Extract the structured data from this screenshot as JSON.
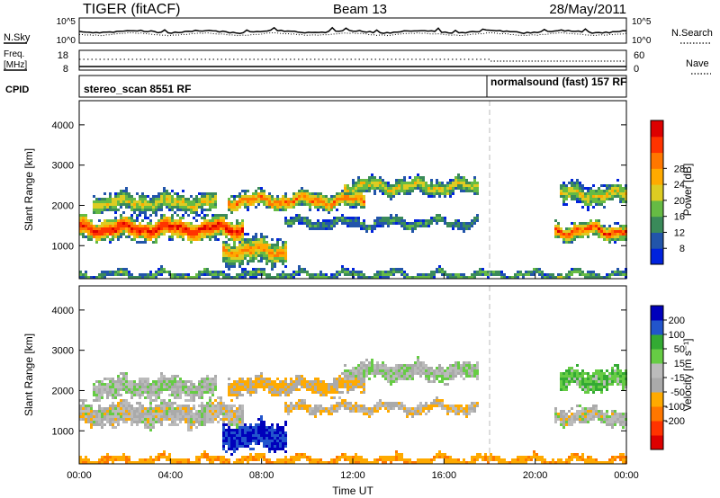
{
  "header": {
    "radar": "TIGER (fitACF)",
    "beam": "Beam 13",
    "date": "28/May/2011"
  },
  "noise_panel": {
    "left_label": "N.Sky",
    "right_label": "N.Search",
    "left_top_tick": "10^5",
    "left_bottom_tick": "10^0",
    "right_top_tick": "10^5",
    "right_bottom_tick": "10^0"
  },
  "freq_panel": {
    "left_label_1": "Freq.",
    "left_label_2": "[MHz]",
    "right_label": "Nave",
    "left_ticks": [
      "18",
      "8"
    ],
    "right_ticks": [
      "60",
      "0"
    ]
  },
  "cpid_panel": {
    "label": "CPID",
    "mode_1": "stereo_scan 8551 RF",
    "mode_2": "normalsound (fast) 157 RF"
  },
  "colors": {
    "power_scale": [
      "#0022dd",
      "#2255aa",
      "#3a8a5a",
      "#66bb44",
      "#ddcc22",
      "#ffaa00",
      "#ff7700",
      "#ff3300",
      "#dd0000"
    ],
    "velocity_scale": [
      "#0000bb",
      "#2255cc",
      "#33aa33",
      "#66cc44",
      "#bbbbbb",
      "#aaaaaa",
      "#ffaa00",
      "#ff7700",
      "#ff3300",
      "#dd0000"
    ]
  },
  "chart_data": [
    {
      "type": "heatmap",
      "name": "Power",
      "ylabel": "Slant Range [km]",
      "xlabel": "",
      "x_ticks": [
        "00:00",
        "04:00",
        "08:00",
        "12:00",
        "16:00",
        "20:00",
        "00:00"
      ],
      "y_ticks": [
        "1000",
        "2000",
        "3000",
        "4000"
      ],
      "xlim_hours": [
        0,
        24
      ],
      "ylim_km": [
        180,
        4600
      ],
      "colorbar_label": "Power [dB]",
      "colorbar_ticks": [
        "8",
        "12",
        "16",
        "20",
        "24",
        "28"
      ],
      "mode_change_hour": 18.0,
      "bands": [
        {
          "start": 0.0,
          "end": 7.2,
          "center": 1450,
          "width": 350,
          "intensity": 1.0
        },
        {
          "start": 0.5,
          "end": 6.0,
          "center": 2100,
          "width": 300,
          "intensity": 0.55
        },
        {
          "start": 6.5,
          "end": 12.5,
          "center": 2150,
          "width": 250,
          "intensity": 0.8
        },
        {
          "start": 11.5,
          "end": 17.5,
          "center": 2500,
          "width": 250,
          "intensity": 0.55
        },
        {
          "start": 6.2,
          "end": 9.0,
          "center": 900,
          "width": 400,
          "intensity": 0.7
        },
        {
          "start": 9.0,
          "end": 17.5,
          "center": 1600,
          "width": 150,
          "intensity": 0.3
        },
        {
          "start": 20.8,
          "end": 24.0,
          "center": 1400,
          "width": 250,
          "intensity": 0.9
        },
        {
          "start": 21.0,
          "end": 24.0,
          "center": 2300,
          "width": 300,
          "intensity": 0.55
        },
        {
          "start": 0.0,
          "end": 24.0,
          "center": 300,
          "width": 120,
          "intensity": 0.35
        }
      ]
    },
    {
      "type": "heatmap",
      "name": "Velocity",
      "ylabel": "Slant Range [km]",
      "xlabel": "Time UT",
      "x_ticks": [
        "00:00",
        "04:00",
        "08:00",
        "12:00",
        "16:00",
        "20:00",
        "00:00"
      ],
      "y_ticks": [
        "1000",
        "2000",
        "3000",
        "4000"
      ],
      "xlim_hours": [
        0,
        24
      ],
      "ylim_km": [
        180,
        4600
      ],
      "colorbar_label": "Velocity [m s⁻¹]",
      "colorbar_ticks": [
        "200",
        "100",
        "50",
        "15",
        "-15",
        "-50",
        "-100",
        "-200"
      ],
      "mode_change_hour": 18.0,
      "bands": [
        {
          "start": 0.0,
          "end": 7.2,
          "center": 1450,
          "width": 350,
          "velocity": 0
        },
        {
          "start": 0.5,
          "end": 6.0,
          "center": 2100,
          "width": 300,
          "velocity": 5
        },
        {
          "start": 6.5,
          "end": 12.5,
          "center": 2150,
          "width": 250,
          "velocity": -20
        },
        {
          "start": 11.5,
          "end": 17.5,
          "center": 2500,
          "width": 250,
          "velocity": 5
        },
        {
          "start": 6.2,
          "end": 9.0,
          "center": 900,
          "width": 400,
          "velocity": 150
        },
        {
          "start": 9.0,
          "end": 17.5,
          "center": 1600,
          "width": 150,
          "velocity": -10
        },
        {
          "start": 20.8,
          "end": 24.0,
          "center": 1400,
          "width": 250,
          "velocity": 0
        },
        {
          "start": 21.0,
          "end": 24.0,
          "center": 2300,
          "width": 300,
          "velocity": 30
        },
        {
          "start": 0.0,
          "end": 24.0,
          "center": 300,
          "width": 120,
          "velocity": -40
        }
      ]
    }
  ]
}
